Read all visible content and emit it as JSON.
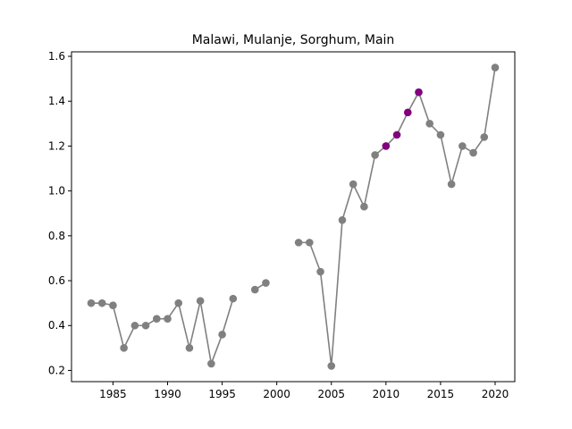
{
  "chart_data": {
    "type": "line",
    "title": "Malawi, Mulanje, Sorghum, Main",
    "xlabel": "",
    "ylabel": "",
    "xlim": [
      1981.2,
      2021.8
    ],
    "ylim": [
      0.15,
      1.62
    ],
    "xticks": [
      1985,
      1990,
      1995,
      2000,
      2005,
      2010,
      2015,
      2020
    ],
    "yticks": [
      0.2,
      0.4,
      0.6,
      0.8,
      1.0,
      1.2,
      1.4,
      1.6
    ],
    "ytick_labels": [
      "0.2",
      "0.4",
      "0.6",
      "0.8",
      "1.0",
      "1.2",
      "1.4",
      "1.6"
    ],
    "grid": false,
    "line_color": "#808080",
    "default_marker_color": "#808080",
    "highlight_marker_color": "#800080",
    "x": [
      1983,
      1984,
      1985,
      1986,
      1987,
      1988,
      1989,
      1990,
      1991,
      1992,
      1993,
      1994,
      1995,
      1996,
      1997,
      1998,
      1999,
      2000,
      2001,
      2002,
      2003,
      2004,
      2005,
      2006,
      2007,
      2008,
      2009,
      2010,
      2011,
      2012,
      2013,
      2014,
      2015,
      2016,
      2017,
      2018,
      2019,
      2020
    ],
    "y": [
      0.5,
      0.5,
      0.49,
      0.3,
      0.4,
      0.4,
      0.43,
      0.43,
      0.5,
      0.3,
      0.51,
      0.23,
      0.36,
      0.52,
      null,
      0.56,
      0.59,
      null,
      null,
      0.77,
      0.77,
      0.64,
      0.22,
      0.87,
      1.03,
      0.93,
      1.16,
      1.2,
      1.25,
      1.35,
      1.44,
      1.3,
      1.25,
      1.03,
      1.2,
      1.17,
      1.24,
      1.55
    ],
    "highlighted_x": [
      2010,
      2011,
      2012,
      2013
    ]
  }
}
